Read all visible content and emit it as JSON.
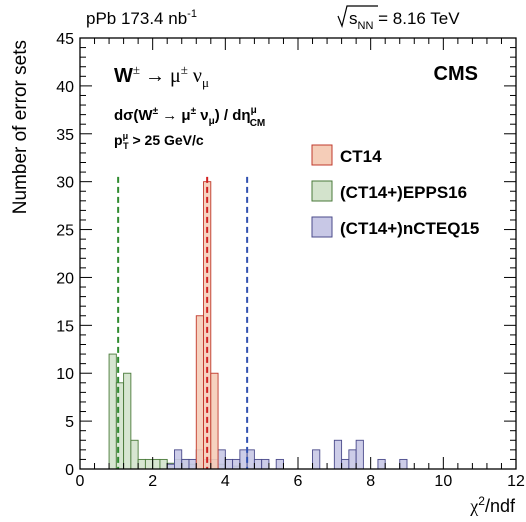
{
  "chart_data": {
    "type": "histogram",
    "header_left": {
      "base": "pPb 173.4 nb",
      "sup": "-1"
    },
    "header_right": {
      "prefix": "s",
      "sub": "NN",
      "rest": " = 8.16 TeV"
    },
    "experiment": "CMS",
    "process": {
      "w": "W",
      "pm": "±",
      "arrow": " → ",
      "mu": "μ",
      "pm2": "±",
      "nu": " ν",
      "nu_sub": "μ"
    },
    "observable": {
      "a": "dσ(W",
      "a_sup": "±",
      "b": " → μ",
      "b_sup": "±",
      "c": " ν",
      "c_sub": "μ",
      "d": ") / dη",
      "d_sup": "μ",
      "d_sub": "CM"
    },
    "cut": {
      "p": "p",
      "p_sup": "μ",
      "p_sub": "T",
      "rest": " > 25 GeV/c"
    },
    "xlabel": {
      "chi": "χ",
      "sup": "2",
      "rest": "/ndf"
    },
    "ylabel": "Number of error sets",
    "xlim": [
      0,
      12
    ],
    "ylim": [
      0,
      45
    ],
    "xticks": [
      0,
      2,
      4,
      6,
      8,
      10,
      12
    ],
    "yticks": [
      0,
      5,
      10,
      15,
      20,
      25,
      30,
      35,
      40,
      45
    ],
    "bin_width": 0.2,
    "legend_position": "right",
    "series": [
      {
        "name": "(CT14+)EPPS16",
        "fill": "#d3e3cc",
        "line": "#4a7a3a",
        "mean": 1.05,
        "mean_color": "#2e8b2e",
        "bins": [
          [
            0.8,
            12
          ],
          [
            1.0,
            9
          ],
          [
            1.2,
            10
          ],
          [
            1.4,
            3
          ],
          [
            1.6,
            1
          ],
          [
            1.8,
            1
          ],
          [
            2.0,
            1
          ],
          [
            2.2,
            1
          ],
          [
            2.4,
            0.6
          ],
          [
            2.6,
            1
          ],
          [
            2.8,
            1
          ],
          [
            3.0,
            0.5
          ],
          [
            3.6,
            0.3
          ],
          [
            3.8,
            0.5
          ],
          [
            4.2,
            0.3
          ]
        ]
      },
      {
        "name": "(CT14+)nCTEQ15",
        "fill": "#c8c8e6",
        "line": "#4a4a8a",
        "mean": 4.6,
        "mean_color": "#3050b0",
        "bins": [
          [
            2.4,
            0.5
          ],
          [
            2.6,
            2
          ],
          [
            2.8,
            1
          ],
          [
            3.0,
            1
          ],
          [
            3.2,
            2
          ],
          [
            3.4,
            1
          ],
          [
            3.6,
            1
          ],
          [
            3.8,
            2
          ],
          [
            4.0,
            1
          ],
          [
            4.2,
            1
          ],
          [
            4.4,
            2
          ],
          [
            4.6,
            2
          ],
          [
            4.8,
            1
          ],
          [
            5.0,
            1
          ],
          [
            5.4,
            1
          ],
          [
            6.4,
            2
          ],
          [
            7.0,
            3
          ],
          [
            7.2,
            1
          ],
          [
            7.4,
            2
          ],
          [
            7.6,
            3
          ],
          [
            8.2,
            1
          ],
          [
            8.8,
            1
          ]
        ]
      },
      {
        "name": "CT14",
        "fill": "#f5cdb8",
        "line": "#c0392b",
        "mean": 3.5,
        "mean_color": "#d22020",
        "bins": [
          [
            3.2,
            16
          ],
          [
            3.4,
            30
          ],
          [
            3.6,
            10
          ]
        ]
      }
    ],
    "legend": [
      {
        "name": "CT14",
        "fill": "#f5cdb8",
        "line": "#c0392b"
      },
      {
        "name": "(CT14+)EPPS16",
        "fill": "#d3e3cc",
        "line": "#4a7a3a"
      },
      {
        "name": "(CT14+)nCTEQ15",
        "fill": "#c8c8e6",
        "line": "#4a4a8a"
      }
    ]
  }
}
